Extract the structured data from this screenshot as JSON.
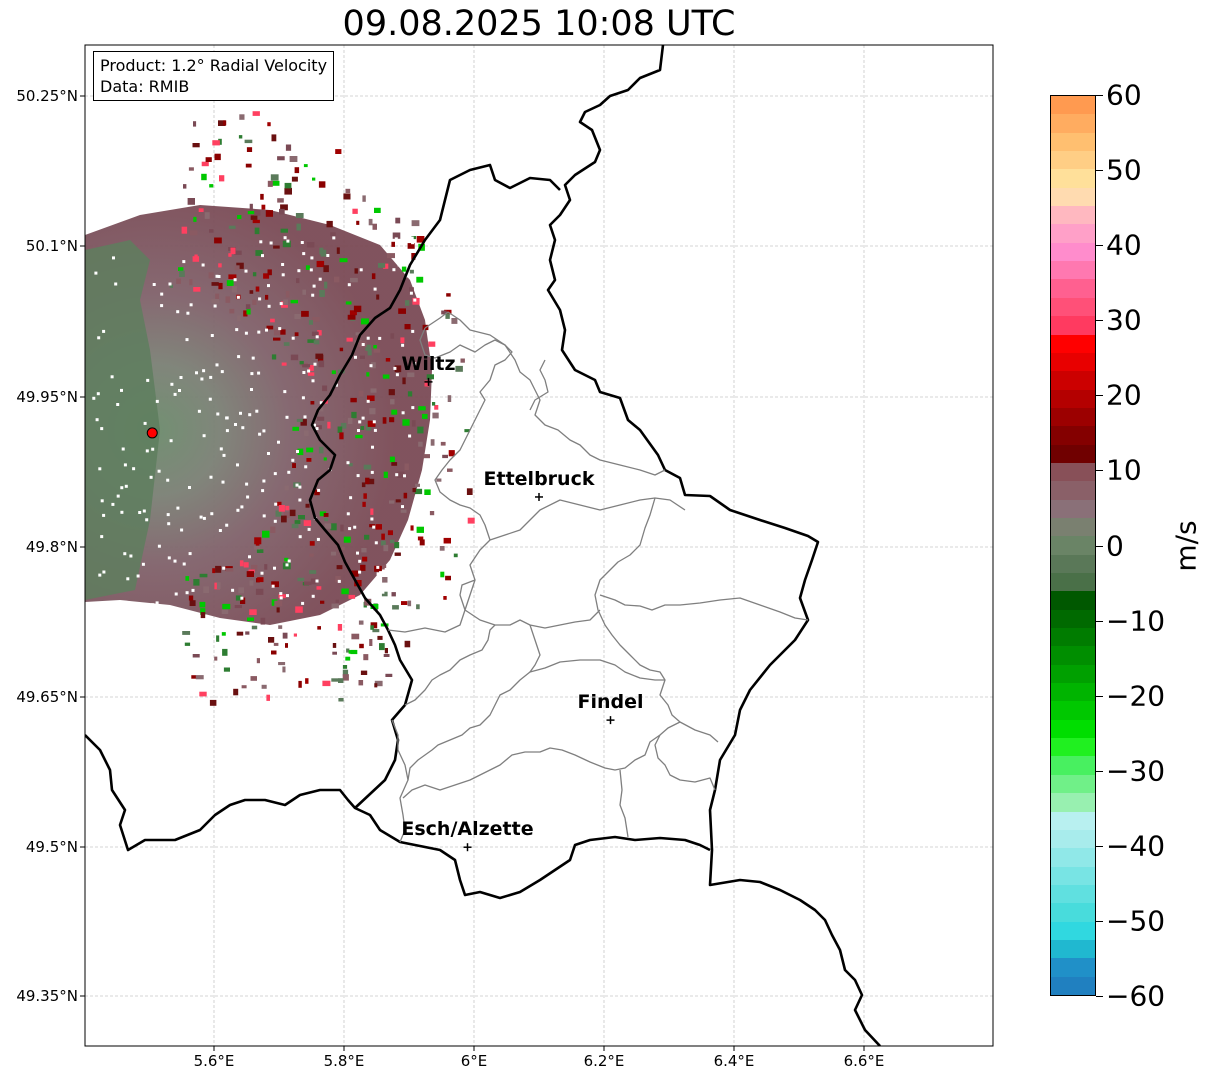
{
  "title": "09.08.2025 10:08 UTC",
  "info": {
    "product": "Product: 1.2° Radial Velocity",
    "data": "Data: RMIB"
  },
  "lat_ticks": [
    "50.25°N",
    "50.1°N",
    "49.95°N",
    "49.8°N",
    "49.65°N",
    "49.5°N",
    "49.35°N"
  ],
  "lon_ticks": [
    "5.6°E",
    "5.8°E",
    "6°E",
    "6.2°E",
    "6.4°E",
    "6.6°E"
  ],
  "colorbar": {
    "unit": "m/s",
    "ticks": [
      "60",
      "50",
      "40",
      "30",
      "20",
      "10",
      "0",
      "−10",
      "−20",
      "−30",
      "−40",
      "−50",
      "−60"
    ],
    "range": [
      -60,
      60
    ]
  },
  "cities": [
    {
      "name": "Wiltz",
      "lon": 5.93,
      "lat": 49.965
    },
    {
      "name": "Ettelbruck",
      "lon": 6.1,
      "lat": 49.85
    },
    {
      "name": "Findel",
      "lon": 6.21,
      "lat": 49.627
    },
    {
      "name": "Esch/Alzette",
      "lon": 5.99,
      "lat": 49.5
    }
  ],
  "radar_site": {
    "lon": 5.505,
    "lat": 49.914
  },
  "colors": {
    "border": "#000000",
    "canton_lines": "#808080",
    "receding_velocity": "#7a4a55",
    "approaching_velocity": "#5a7a5a",
    "radar_marker": "#ff0000"
  }
}
